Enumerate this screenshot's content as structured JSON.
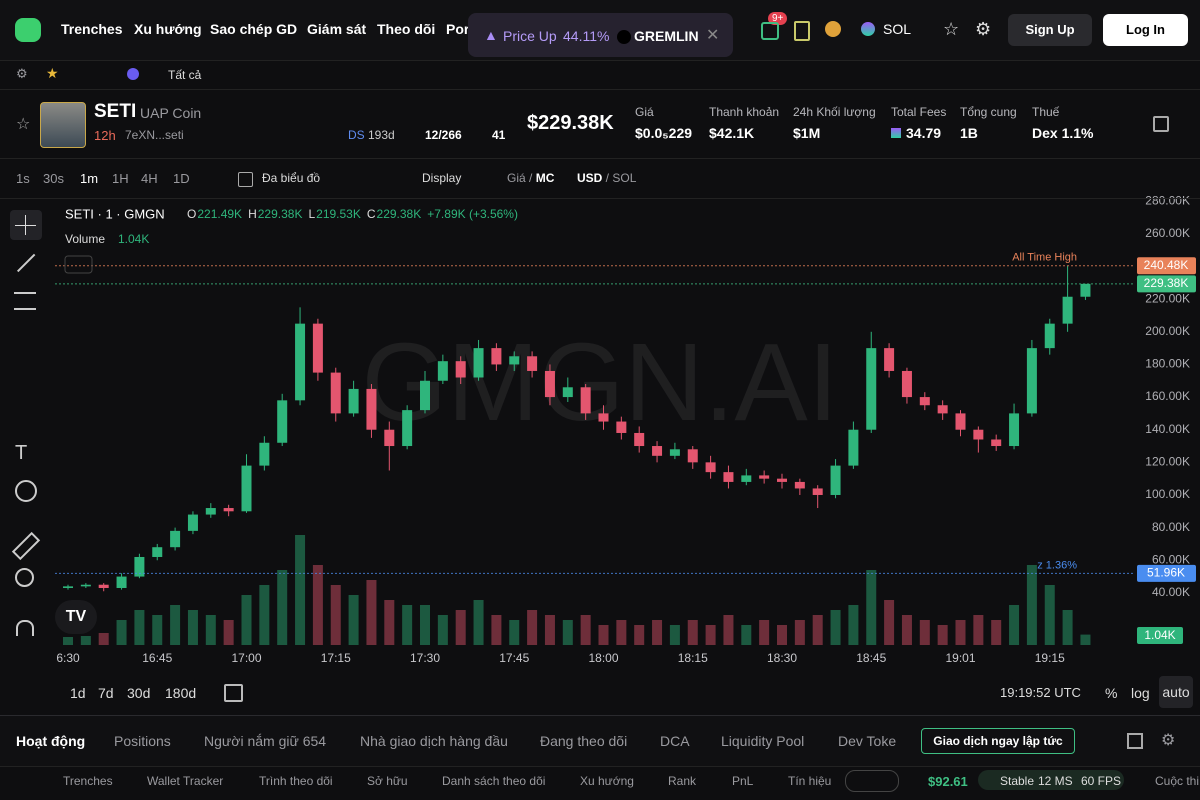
{
  "nav": {
    "items": [
      "Trenches",
      "Xu hướng",
      "Sao chép GD",
      "Giám sát",
      "Theo dõi",
      "Por"
    ],
    "toast": {
      "label": "Price Up",
      "change": "44.11%",
      "token": "GREMLIN"
    },
    "badge": "9+",
    "chain": "SOL",
    "signup": "Sign Up",
    "login": "Log In"
  },
  "filter": "Tất cả",
  "token": {
    "symbol": "SETI",
    "name": "UAP Coin",
    "age": "12h",
    "address": "7eXN...seti",
    "ds": "DS",
    "ds_age": "193d",
    "holders": "12/266",
    "views": "41",
    "price": "$229.38K",
    "stats": [
      {
        "label": "Giá",
        "value": "$0.0₅229"
      },
      {
        "label": "Thanh khoản",
        "value": "$42.1K"
      },
      {
        "label": "24h Khối lượng",
        "value": "$1M"
      },
      {
        "label": "Total Fees",
        "value": "34.79"
      },
      {
        "label": "Tổng cung",
        "value": "1B"
      },
      {
        "label": "Thuế",
        "value": "Dex 1.1%"
      }
    ]
  },
  "toolbar": {
    "intervals": [
      "1s",
      "30s",
      "1m",
      "1H",
      "4H",
      "1D"
    ],
    "multi": "Đa biểu đồ",
    "display": "Display",
    "price": "Giá",
    "mc": "MC",
    "usd": "USD",
    "sol": "SOL"
  },
  "chart_data": {
    "type": "candlestick",
    "title": "SETI · 1 · GMGN",
    "watermark": "GMGN.AI",
    "ohlc": [
      {
        "key": "O",
        "value": "221.49K"
      },
      {
        "key": "H",
        "value": "229.38K"
      },
      {
        "key": "L",
        "value": "219.53K"
      },
      {
        "key": "C",
        "value": "229.38K"
      }
    ],
    "change": "+7.89K (+3.56%)",
    "volume_label": "Volume",
    "volume_value": "1.04K",
    "colors": {
      "up": "#2fb57c",
      "down": "#e4566f"
    },
    "candles": [
      [
        43000,
        45000,
        42000,
        44000
      ],
      [
        44000,
        46000,
        43000,
        45000
      ],
      [
        45000,
        46000,
        41000,
        43000
      ],
      [
        43000,
        52000,
        42000,
        50000
      ],
      [
        50000,
        64000,
        49000,
        62000
      ],
      [
        62000,
        70000,
        60000,
        68000
      ],
      [
        68000,
        80000,
        66000,
        78000
      ],
      [
        78000,
        90000,
        76000,
        88000
      ],
      [
        88000,
        95000,
        86000,
        92000
      ],
      [
        92000,
        94000,
        87000,
        90000
      ],
      [
        90000,
        125000,
        89000,
        118000
      ],
      [
        118000,
        136000,
        115000,
        132000
      ],
      [
        132000,
        162000,
        130000,
        158000
      ],
      [
        158000,
        215000,
        155000,
        205000
      ],
      [
        205000,
        208000,
        170000,
        175000
      ],
      [
        175000,
        178000,
        145000,
        150000
      ],
      [
        150000,
        170000,
        148000,
        165000
      ],
      [
        165000,
        168000,
        135000,
        140000
      ],
      [
        140000,
        145000,
        115000,
        130000
      ],
      [
        130000,
        155000,
        128000,
        152000
      ],
      [
        152000,
        176000,
        150000,
        170000
      ],
      [
        170000,
        186000,
        168000,
        182000
      ],
      [
        182000,
        185000,
        168000,
        172000
      ],
      [
        172000,
        195000,
        170000,
        190000
      ],
      [
        190000,
        193000,
        176000,
        180000
      ],
      [
        180000,
        188000,
        176000,
        185000
      ],
      [
        185000,
        188000,
        172000,
        176000
      ],
      [
        176000,
        180000,
        155000,
        160000
      ],
      [
        160000,
        172000,
        157000,
        166000
      ],
      [
        166000,
        168000,
        146000,
        150000
      ],
      [
        150000,
        155000,
        140000,
        145000
      ],
      [
        145000,
        148000,
        134000,
        138000
      ],
      [
        138000,
        142000,
        126000,
        130000
      ],
      [
        130000,
        133000,
        120000,
        124000
      ],
      [
        124000,
        132000,
        122000,
        128000
      ],
      [
        128000,
        130000,
        116000,
        120000
      ],
      [
        120000,
        124000,
        110000,
        114000
      ],
      [
        114000,
        118000,
        104000,
        108000
      ],
      [
        108000,
        116000,
        106000,
        112000
      ],
      [
        112000,
        115000,
        107000,
        110000
      ],
      [
        110000,
        113000,
        104000,
        108000
      ],
      [
        108000,
        110000,
        100000,
        104000
      ],
      [
        104000,
        106000,
        92000,
        100000
      ],
      [
        100000,
        122000,
        98000,
        118000
      ],
      [
        118000,
        145000,
        116000,
        140000
      ],
      [
        140000,
        200000,
        138000,
        190000
      ],
      [
        190000,
        193000,
        172000,
        176000
      ],
      [
        176000,
        178000,
        156000,
        160000
      ],
      [
        160000,
        163000,
        152000,
        155000
      ],
      [
        155000,
        158000,
        146000,
        150000
      ],
      [
        150000,
        152000,
        136000,
        140000
      ],
      [
        140000,
        142000,
        126000,
        134000
      ],
      [
        134000,
        137000,
        127000,
        130000
      ],
      [
        130000,
        156000,
        128000,
        150000
      ],
      [
        150000,
        195000,
        148000,
        190000
      ],
      [
        190000,
        208000,
        186000,
        205000
      ],
      [
        205000,
        240480,
        200000,
        221490
      ],
      [
        221490,
        229380,
        219530,
        229380
      ]
    ],
    "volumes": [
      800,
      900,
      1200,
      2500,
      3500,
      3000,
      4000,
      3500,
      3000,
      2500,
      5000,
      6000,
      7500,
      11000,
      8000,
      6000,
      5000,
      6500,
      4500,
      4000,
      4000,
      3000,
      3500,
      4500,
      3000,
      2500,
      3500,
      3000,
      2500,
      3000,
      2000,
      2500,
      2000,
      2500,
      2000,
      2500,
      2000,
      3000,
      2000,
      2500,
      2000,
      2500,
      3000,
      3500,
      4000,
      7500,
      4500,
      3000,
      2500,
      2000,
      2500,
      3000,
      2500,
      4000,
      8000,
      6000,
      3500,
      1040
    ],
    "ylim": [
      5000,
      282000
    ],
    "yticks": [
      {
        "value": 40000,
        "label": "40.00K"
      },
      {
        "value": 60000,
        "label": "60.00K"
      },
      {
        "value": 80000,
        "label": "80.00K"
      },
      {
        "value": 100000,
        "label": "100.00K"
      },
      {
        "value": 120000,
        "label": "120.00K"
      },
      {
        "value": 140000,
        "label": "140.00K"
      },
      {
        "value": 160000,
        "label": "160.00K"
      },
      {
        "value": 180000,
        "label": "180.00K"
      },
      {
        "value": 200000,
        "label": "200.00K"
      },
      {
        "value": 220000,
        "label": "220.00K"
      },
      {
        "value": 240000,
        "label": "240.00K"
      },
      {
        "value": 260000,
        "label": "260.00K"
      },
      {
        "value": 280000,
        "label": "280.00K"
      }
    ],
    "volume_ylim": [
      0,
      12000
    ],
    "xticks": [
      {
        "value": 0,
        "label": "6:30"
      },
      {
        "value": 5,
        "label": "16:45"
      },
      {
        "value": 10,
        "label": "17:00"
      },
      {
        "value": 15,
        "label": "17:15"
      },
      {
        "value": 20,
        "label": "17:30"
      },
      {
        "value": 25,
        "label": "17:45"
      },
      {
        "value": 30,
        "label": "18:00"
      },
      {
        "value": 35,
        "label": "18:15"
      },
      {
        "value": 40,
        "label": "18:30"
      },
      {
        "value": 45,
        "label": "18:45"
      },
      {
        "value": 50,
        "label": "19:01"
      },
      {
        "value": 55,
        "label": "19:15"
      }
    ],
    "markers": [
      {
        "label": "All Time High",
        "value": 240480,
        "value_label": "240.48K",
        "color": "#e8825a"
      },
      {
        "value": 229380,
        "value_label": "229.38K",
        "color": "#3fbf83"
      },
      {
        "label": "z 1.36%",
        "value": 51960,
        "value_label": "51.96K",
        "color": "#4a8df0"
      }
    ],
    "grid": false
  },
  "ranges": [
    "1d",
    "7d",
    "30d",
    "180d"
  ],
  "clock": "19:19:52 UTC",
  "scale": [
    "%",
    "log",
    "auto"
  ],
  "tabs": [
    "Hoạt động",
    "Positions",
    "Người nắm giữ 654",
    "Nhà giao dịch hàng đầu",
    "Đang theo dõi",
    "DCA",
    "Liquidity Pool",
    "Dev Toke"
  ],
  "trade_button": "Giao dịch ngay lập tức",
  "footer": {
    "links": [
      "Trenches",
      "Wallet Tracker",
      "Trình theo dõi",
      "Sở hữu",
      "Danh sách theo dõi",
      "Xu hướng",
      "Rank",
      "PnL",
      "Tín hiệu"
    ],
    "sol_price": "$92.61",
    "status": "Stable",
    "ms": "12 MS",
    "fps": "60 FPS",
    "support": "Cuộc thi"
  }
}
